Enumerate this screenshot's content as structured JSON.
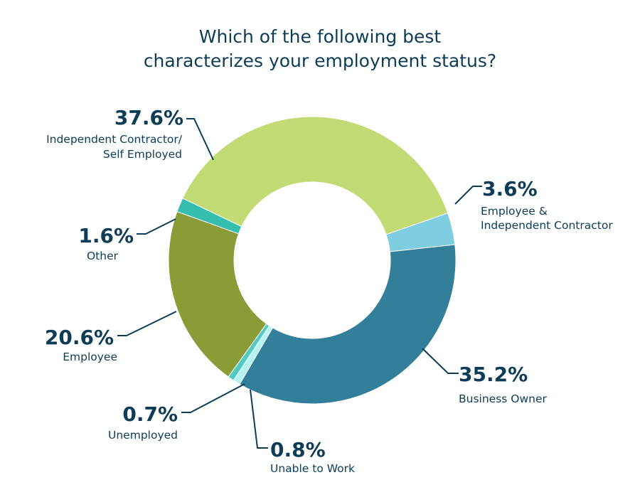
{
  "chart_data": {
    "type": "pie",
    "donut": true,
    "title": [
      "Which of the following best",
      "characterizes your employment status?"
    ],
    "slices": [
      {
        "name": [
          "Employee &",
          "Independent Contractor"
        ],
        "value": 3.6,
        "label": "3.6%",
        "color": "#7ecde0"
      },
      {
        "name": [
          "Business Owner"
        ],
        "value": 35.2,
        "label": "35.2%",
        "color": "#337f9a"
      },
      {
        "name": [
          "Unable to Work"
        ],
        "value": 0.8,
        "label": "0.8%",
        "color": "#b6f3f3"
      },
      {
        "name": [
          "Unemployed"
        ],
        "value": 0.7,
        "label": "0.7%",
        "color": "#52c9c3"
      },
      {
        "name": [
          "Employee"
        ],
        "value": 20.6,
        "label": "20.6%",
        "color": "#8a9c38"
      },
      {
        "name": [
          "Other"
        ],
        "value": 1.6,
        "label": "1.6%",
        "color": "#35bdae"
      },
      {
        "name": [
          "Independent Contractor/",
          "Self Employed"
        ],
        "value": 37.6,
        "label": "37.6%",
        "color": "#c2db74"
      }
    ],
    "legend": "none"
  }
}
